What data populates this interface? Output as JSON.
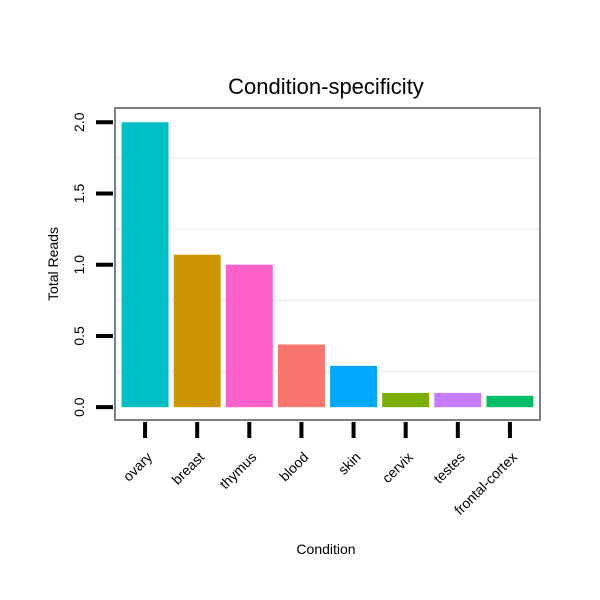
{
  "chart_data": {
    "type": "bar",
    "title": "Condition-specificity",
    "xlabel": "Condition",
    "ylabel": "Total Reads",
    "categories": [
      "ovary",
      "breast",
      "thymus",
      "blood",
      "skin",
      "cervix",
      "testes",
      "frontal-cortex"
    ],
    "values": [
      2.0,
      1.07,
      1.0,
      0.44,
      0.29,
      0.1,
      0.1,
      0.08
    ],
    "colors": [
      "#00BFC4",
      "#CD9600",
      "#FF61CC",
      "#F8766D",
      "#00A9FF",
      "#7CAE00",
      "#C77CFF",
      "#00BE67"
    ],
    "yticks": [
      0.0,
      0.5,
      1.0,
      1.5,
      2.0
    ],
    "ytick_labels": [
      "0.0",
      "0.5",
      "1.0",
      "1.5",
      "2.0"
    ],
    "ylim": [
      -0.09,
      2.1
    ],
    "grid": "horizontal minor lines only",
    "legend": "none"
  }
}
